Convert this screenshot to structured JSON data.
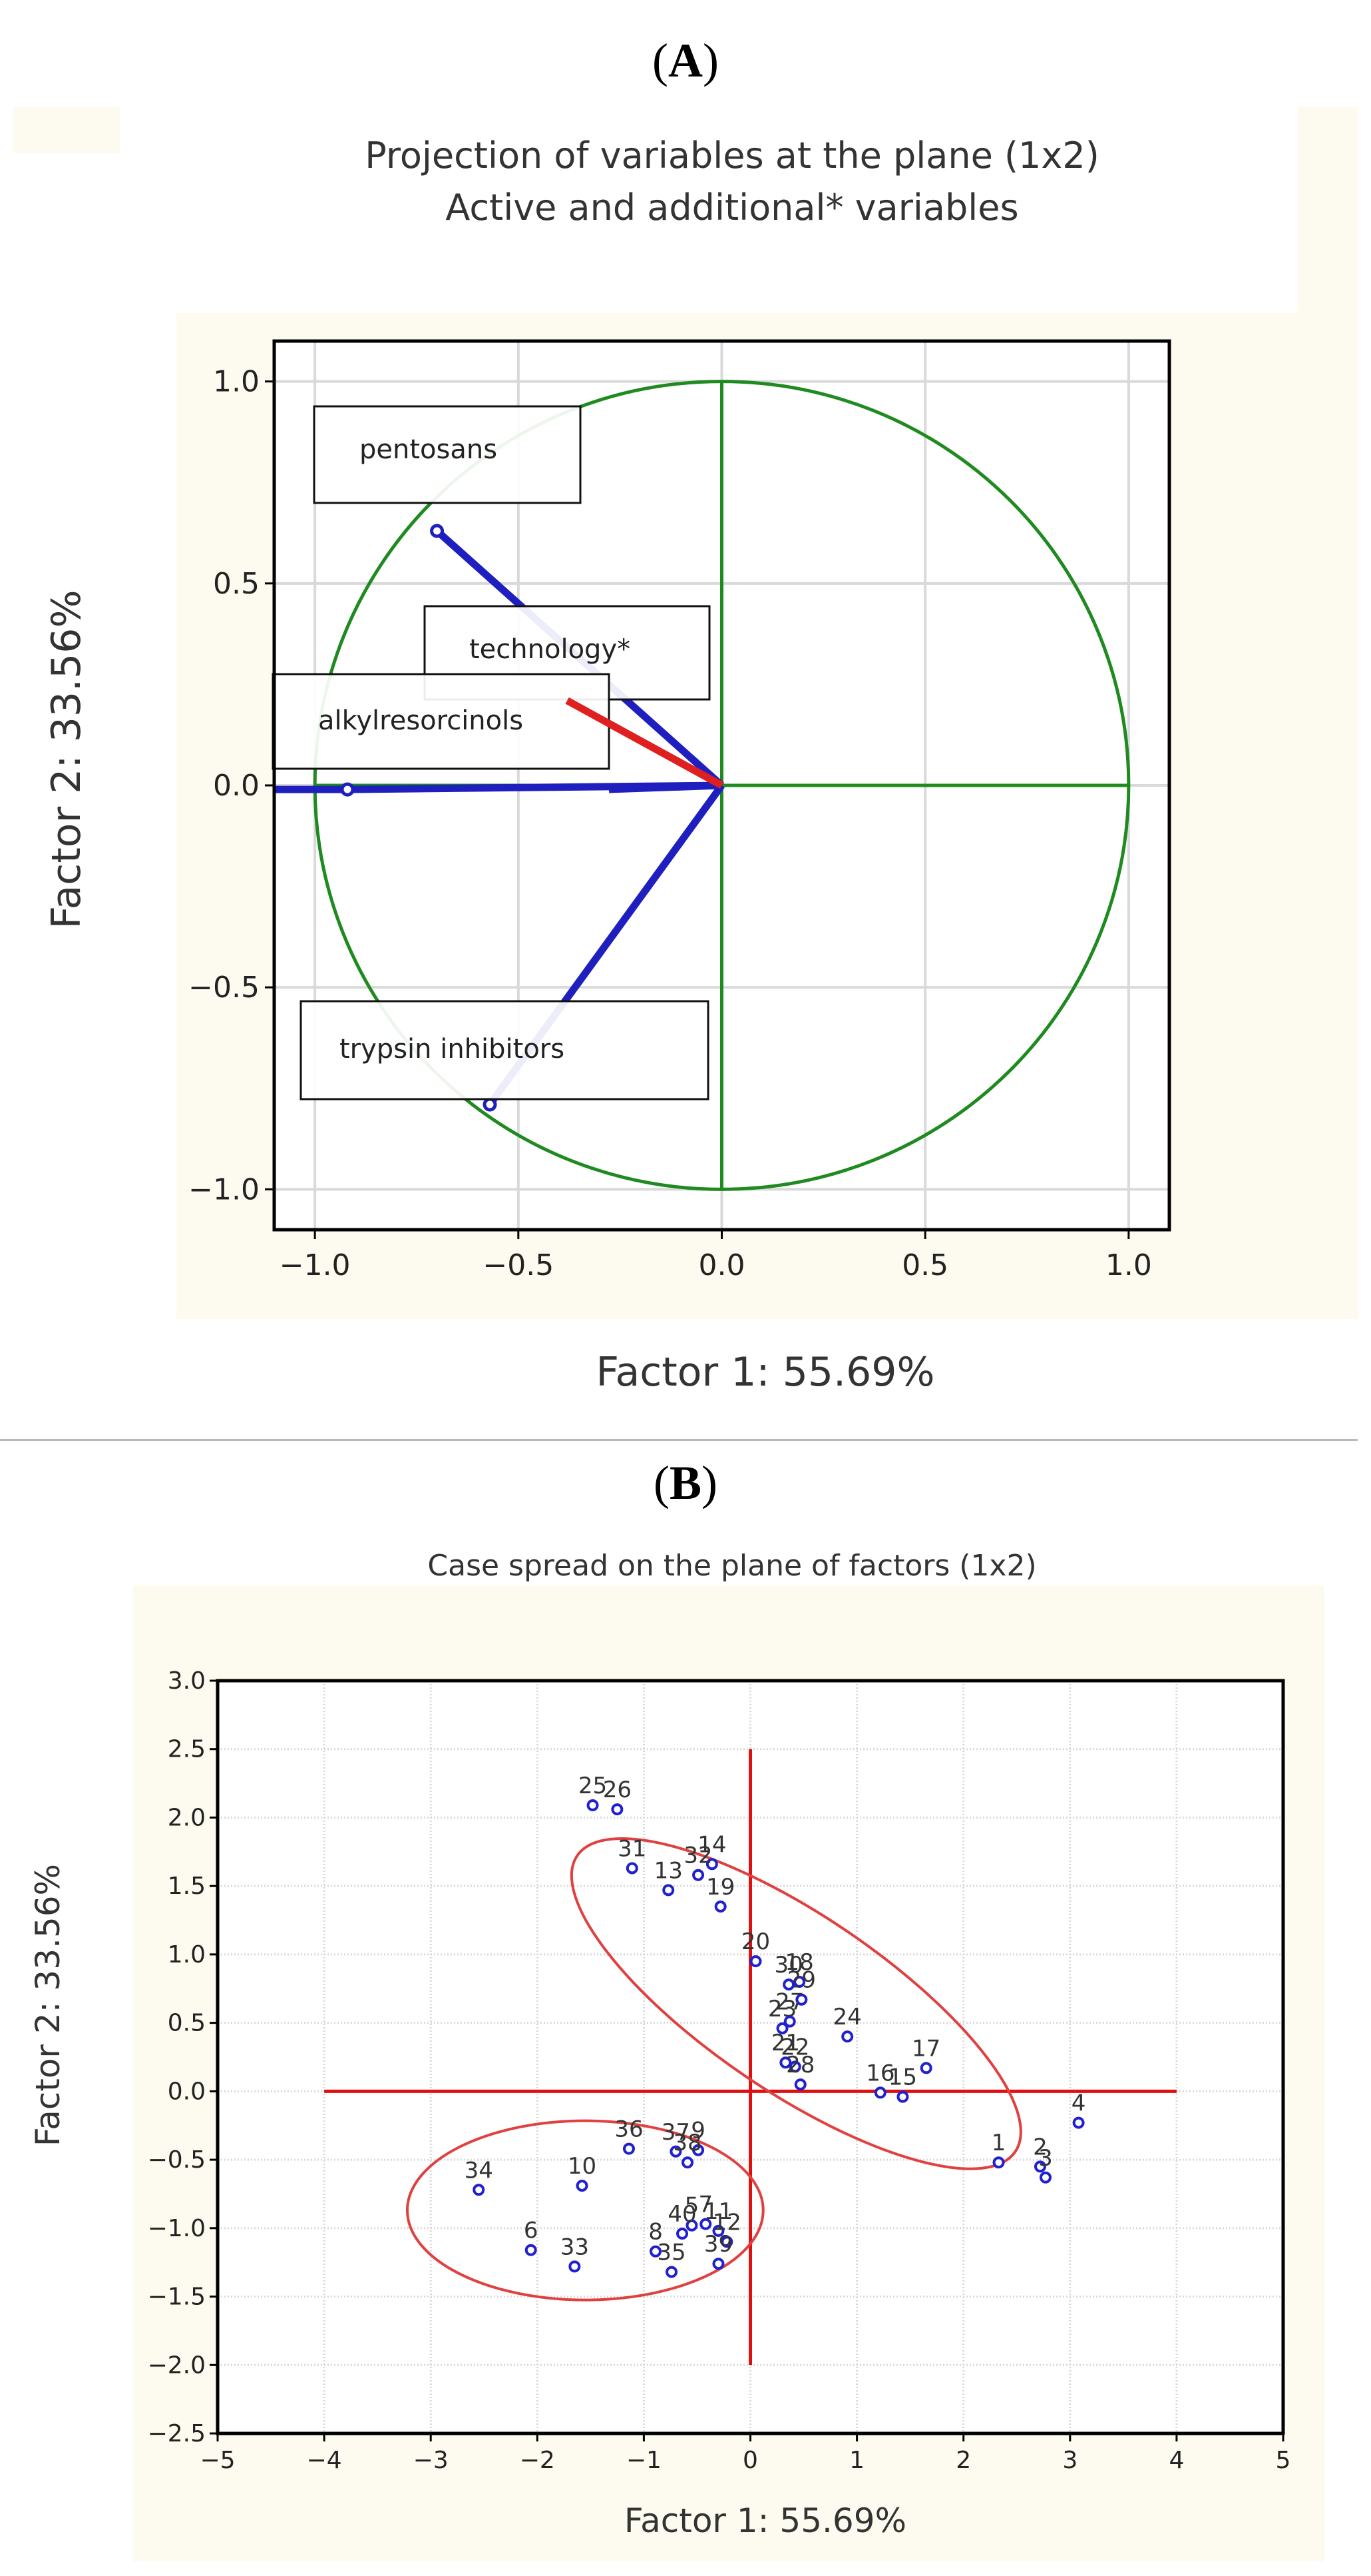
{
  "panel_a": {
    "label_open": "(",
    "label_letter": "A",
    "label_close": ")"
  },
  "panel_b": {
    "label_open": "(",
    "label_letter": "B",
    "label_close": ")"
  },
  "colors": {
    "circle": "#1f8a1f",
    "vector_active": "#1f1fbf",
    "vector_additional": "#e02020",
    "case_point": "#2020d0",
    "ellipse": "#e04040",
    "cross_lines": "#e01010",
    "grid": "#d9d9d9"
  },
  "chart_data": [
    {
      "type": "scatter",
      "subtype": "variable-projection",
      "title_line1": "Projection of variables at the plane (1x2)",
      "title_line2": "Active and additional* variables",
      "xlabel": "Factor 1: 55.69%",
      "ylabel": "Factor 2: 33.56%",
      "xlim": [
        -1.1,
        1.1
      ],
      "ylim": [
        -1.1,
        1.1
      ],
      "xticks": [
        "-1.0",
        "-0.5",
        "0.0",
        "0.5",
        "1.0"
      ],
      "yticks": [
        "1.0",
        "0.5",
        "0.0",
        "-0.5",
        "-1.0"
      ],
      "grid": true,
      "unit_circle": true,
      "variables": [
        {
          "name": "pentosans",
          "x": -0.7,
          "y": 0.63,
          "kind": "active"
        },
        {
          "name": "technology*",
          "x": -0.38,
          "y": 0.21,
          "kind": "additional"
        },
        {
          "name": "alkylresorcinols",
          "x": -0.92,
          "y": -0.01,
          "kind": "active"
        },
        {
          "name": "trypsin inhibitors",
          "x": -0.57,
          "y": -0.79,
          "kind": "active"
        }
      ]
    },
    {
      "type": "scatter",
      "subtype": "case-spread",
      "title": "Case spread on the plane of factors (1x2)",
      "xlabel": "Factor 1: 55.69%",
      "ylabel": "Factor 2: 33.56%",
      "xlim": [
        -5,
        5
      ],
      "ylim": [
        -2.5,
        3.0
      ],
      "xticks": [
        "-5",
        "-4",
        "-3",
        "-2",
        "-1",
        "0",
        "1",
        "2",
        "3",
        "4",
        "5"
      ],
      "yticks": [
        "3.0",
        "2.5",
        "2.0",
        "1.5",
        "1.0",
        "0.5",
        "0.0",
        "-0.5",
        "-1.0",
        "-1.5",
        "-2.0",
        "-2.5"
      ],
      "grid": true,
      "cross_lines": {
        "x_from": -4,
        "x_to": 4,
        "y_from": -2,
        "y_to": 2.5
      },
      "ellipses": [
        {
          "cx": 0.43,
          "cy": 0.64,
          "rx": 2.48,
          "ry": 0.83,
          "angle_deg": -34
        },
        {
          "cx": -1.55,
          "cy": -0.87,
          "rx": 1.67,
          "ry": 0.84,
          "angle_deg": 0
        }
      ],
      "points": [
        {
          "label": "1",
          "x": 2.33,
          "y": -0.52
        },
        {
          "label": "2",
          "x": 2.72,
          "y": -0.55
        },
        {
          "label": "3",
          "x": 2.77,
          "y": -0.63
        },
        {
          "label": "4",
          "x": 3.08,
          "y": -0.23
        },
        {
          "label": "5",
          "x": -0.55,
          "y": -0.98
        },
        {
          "label": "6",
          "x": -2.06,
          "y": -1.16
        },
        {
          "label": "7",
          "x": -0.42,
          "y": -0.97
        },
        {
          "label": "8",
          "x": -0.89,
          "y": -1.17
        },
        {
          "label": "9",
          "x": -0.49,
          "y": -0.43
        },
        {
          "label": "10",
          "x": -1.58,
          "y": -0.69
        },
        {
          "label": "11",
          "x": -0.3,
          "y": -1.02
        },
        {
          "label": "12",
          "x": -0.22,
          "y": -1.1
        },
        {
          "label": "13",
          "x": -0.77,
          "y": 1.47
        },
        {
          "label": "14",
          "x": -0.36,
          "y": 1.66
        },
        {
          "label": "15",
          "x": 1.43,
          "y": -0.04
        },
        {
          "label": "16",
          "x": 1.22,
          "y": -0.01
        },
        {
          "label": "17",
          "x": 1.65,
          "y": 0.17
        },
        {
          "label": "18",
          "x": 0.46,
          "y": 0.8
        },
        {
          "label": "19",
          "x": -0.28,
          "y": 1.35
        },
        {
          "label": "20",
          "x": 0.05,
          "y": 0.95
        },
        {
          "label": "21",
          "x": 0.33,
          "y": 0.21
        },
        {
          "label": "22",
          "x": 0.42,
          "y": 0.18
        },
        {
          "label": "23",
          "x": 0.3,
          "y": 0.46
        },
        {
          "label": "24",
          "x": 0.91,
          "y": 0.4
        },
        {
          "label": "25",
          "x": -1.48,
          "y": 2.09
        },
        {
          "label": "26",
          "x": -1.25,
          "y": 2.06
        },
        {
          "label": "27",
          "x": 0.37,
          "y": 0.51
        },
        {
          "label": "28",
          "x": 0.47,
          "y": 0.05
        },
        {
          "label": "29",
          "x": 0.48,
          "y": 0.67
        },
        {
          "label": "30",
          "x": 0.36,
          "y": 0.78
        },
        {
          "label": "31",
          "x": -1.11,
          "y": 1.63
        },
        {
          "label": "32",
          "x": -0.49,
          "y": 1.58
        },
        {
          "label": "33",
          "x": -1.65,
          "y": -1.28
        },
        {
          "label": "34",
          "x": -2.55,
          "y": -0.72
        },
        {
          "label": "35",
          "x": -0.74,
          "y": -1.32
        },
        {
          "label": "36",
          "x": -1.14,
          "y": -0.42
        },
        {
          "label": "37",
          "x": -0.7,
          "y": -0.44
        },
        {
          "label": "38",
          "x": -0.59,
          "y": -0.52
        },
        {
          "label": "39",
          "x": -0.3,
          "y": -1.26
        },
        {
          "label": "40",
          "x": -0.64,
          "y": -1.04
        }
      ]
    }
  ]
}
